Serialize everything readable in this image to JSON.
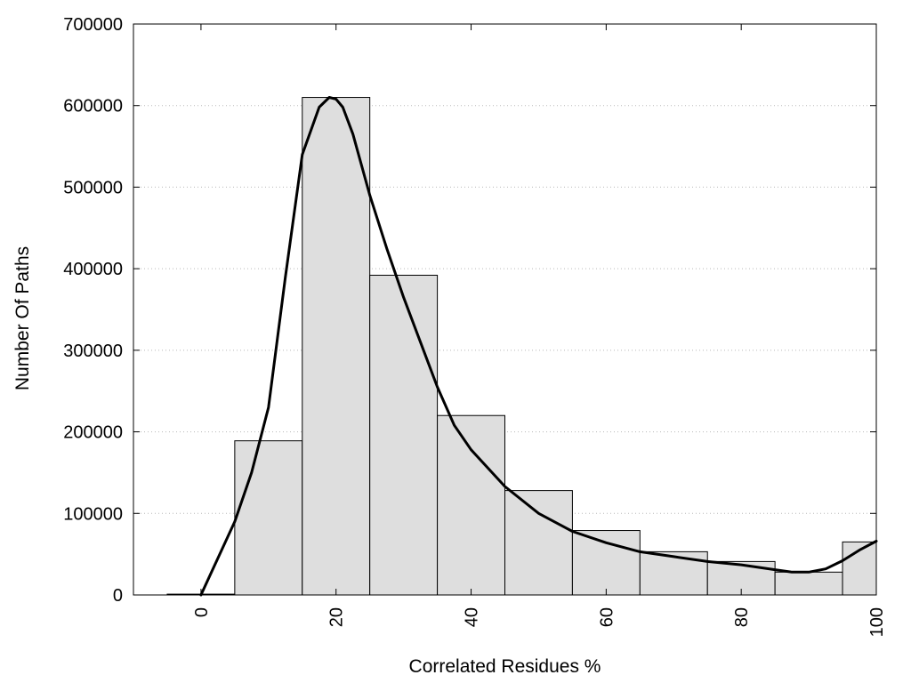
{
  "chart_data": {
    "type": "bar",
    "title": "",
    "xlabel": "Correlated Residues %",
    "ylabel": "Number Of Paths",
    "xlim": [
      -10,
      100
    ],
    "ylim": [
      0,
      700000
    ],
    "grid": "horizontal-dotted",
    "legend": "none",
    "bar_color": "#dedede",
    "line_color": "#000000",
    "x_ticks": [
      0,
      20,
      40,
      60,
      80,
      100
    ],
    "x_tick_labels": [
      "0",
      "20",
      "40",
      "60",
      "80",
      "100"
    ],
    "y_ticks": [
      0,
      100000,
      200000,
      300000,
      400000,
      500000,
      600000,
      700000
    ],
    "y_tick_labels": [
      "0",
      "100000",
      "200000",
      "300000",
      "400000",
      "500000",
      "600000",
      "700000"
    ],
    "bar_width": 10,
    "bins": [
      {
        "x": 0,
        "value": 1000
      },
      {
        "x": 10,
        "value": 189000
      },
      {
        "x": 20,
        "value": 610000
      },
      {
        "x": 30,
        "value": 392000
      },
      {
        "x": 40,
        "value": 220000
      },
      {
        "x": 50,
        "value": 128000
      },
      {
        "x": 60,
        "value": 79000
      },
      {
        "x": 70,
        "value": 53000
      },
      {
        "x": 80,
        "value": 41000
      },
      {
        "x": 90,
        "value": 28000
      },
      {
        "x": 100,
        "value": 65000
      }
    ],
    "smooth_curve": {
      "x": [
        0,
        2.5,
        5,
        7.5,
        10,
        12.5,
        15,
        17.5,
        19,
        20,
        21,
        22.5,
        25,
        27.5,
        30,
        32.5,
        35,
        37.5,
        40,
        45,
        50,
        55,
        60,
        65,
        70,
        75,
        80,
        85,
        87.5,
        90,
        92.5,
        95,
        97.5,
        100
      ],
      "y": [
        0,
        45000,
        90000,
        150000,
        230000,
        390000,
        540000,
        598000,
        610000,
        608000,
        598000,
        565000,
        490000,
        425000,
        365000,
        310000,
        255000,
        208000,
        178000,
        133000,
        100000,
        78000,
        64000,
        53000,
        47000,
        41000,
        37000,
        31000,
        28000,
        28000,
        32000,
        42000,
        55000,
        66000
      ]
    }
  }
}
